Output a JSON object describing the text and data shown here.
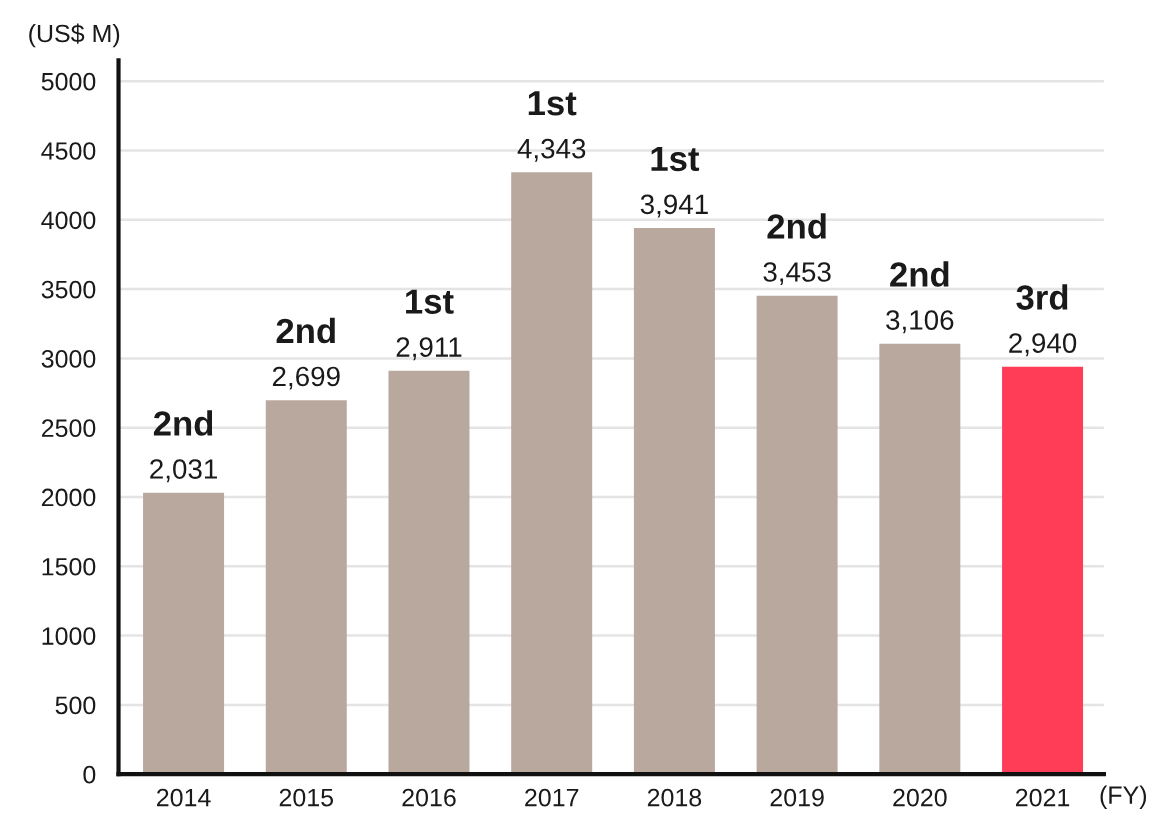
{
  "chart_data": {
    "type": "bar",
    "ylabel": "(US$ M)",
    "xlabel": "(FY)",
    "categories": [
      "2014",
      "2015",
      "2016",
      "2017",
      "2018",
      "2019",
      "2020",
      "2021"
    ],
    "values": [
      2031,
      2699,
      2911,
      4343,
      3941,
      3453,
      3106,
      2940
    ],
    "colors": [
      "#b9a89e",
      "#b9a89e",
      "#b9a89e",
      "#b9a89e",
      "#b9a89e",
      "#b9a89e",
      "#b9a89e",
      "#ff3d57"
    ],
    "value_labels": [
      "2,031",
      "2,699",
      "2,911",
      "4,343",
      "3,941",
      "3,453",
      "3,106",
      "2,940"
    ],
    "annotations": [
      {
        "text": "2nd",
        "x": "2014",
        "y": 2031
      },
      {
        "text": "2nd",
        "x": "2015",
        "y": 2699
      },
      {
        "text": "1st",
        "x": "2016",
        "y": 2911
      },
      {
        "text": "1st",
        "x": "2017",
        "y": 4343
      },
      {
        "text": "1st",
        "x": "2018",
        "y": 3941
      },
      {
        "text": "2nd",
        "x": "2019",
        "y": 3453
      },
      {
        "text": "2nd",
        "x": "2020",
        "y": 3106
      },
      {
        "text": "3rd",
        "x": "2021",
        "y": 2940
      }
    ],
    "ylim": [
      0,
      5150
    ],
    "yticks": [
      0,
      500,
      1000,
      1500,
      2000,
      2500,
      3000,
      3500,
      4000,
      4500,
      5000
    ],
    "grid": "y"
  }
}
